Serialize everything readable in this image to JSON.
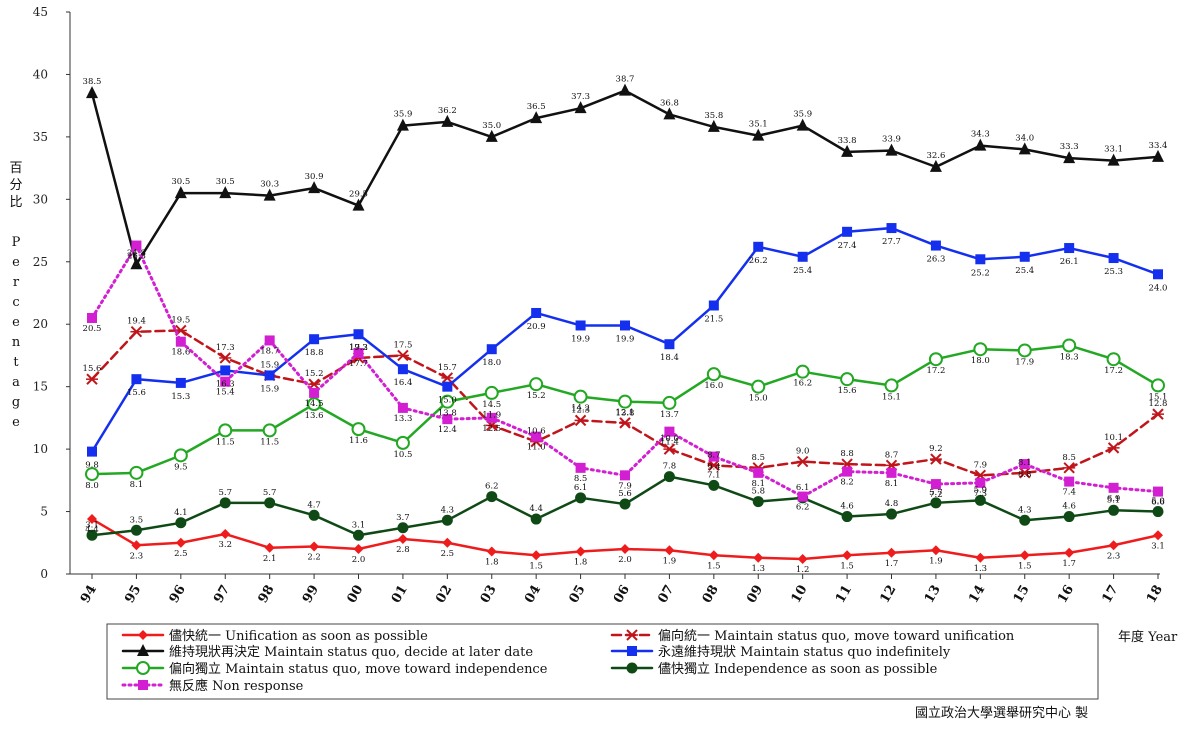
{
  "chart_data": {
    "type": "line",
    "ylabel_zh": "百分比",
    "ylabel_en": "Percentage",
    "xlabel": "年度 Year",
    "credit": "國立政治大學選舉研究中心 製",
    "ylim": [
      0,
      45
    ],
    "yticks": [
      0,
      5,
      10,
      15,
      20,
      25,
      30,
      35,
      40,
      45
    ],
    "categories": [
      "94",
      "95",
      "96",
      "97",
      "98",
      "99",
      "00",
      "01",
      "02",
      "03",
      "04",
      "05",
      "06",
      "07",
      "08",
      "09",
      "10",
      "11",
      "12",
      "13",
      "14",
      "15",
      "16",
      "17",
      "18"
    ],
    "series": [
      {
        "name": "儘快統一 Unification as soon as possible",
        "color": "#ee1c1c",
        "marker": "diamond",
        "dash": "solid",
        "values": [
          4.4,
          2.3,
          2.5,
          3.2,
          2.1,
          2.2,
          2.0,
          2.8,
          2.5,
          1.8,
          1.5,
          1.8,
          2.0,
          1.9,
          1.5,
          1.3,
          1.2,
          1.5,
          1.7,
          1.9,
          1.3,
          1.5,
          1.7,
          2.3,
          3.1
        ]
      },
      {
        "name": "偏向統一 Maintain status quo, move toward unification",
        "color": "#c0151b",
        "marker": "star",
        "dash": "dash",
        "values": [
          15.6,
          19.4,
          19.5,
          17.3,
          15.9,
          15.2,
          17.3,
          17.5,
          15.7,
          11.9,
          10.6,
          12.3,
          12.1,
          10.0,
          8.7,
          8.5,
          9.0,
          8.8,
          8.7,
          9.2,
          7.9,
          8.1,
          8.5,
          10.1,
          12.8
        ]
      },
      {
        "name": "維持現狀再決定 Maintain status quo, decide at later date",
        "color": "#111111",
        "marker": "triangle",
        "dash": "solid",
        "values": [
          38.5,
          24.8,
          30.5,
          30.5,
          30.3,
          30.9,
          29.5,
          35.9,
          36.2,
          35.0,
          36.5,
          37.3,
          38.7,
          36.8,
          35.8,
          35.1,
          35.9,
          33.8,
          33.9,
          32.6,
          34.3,
          34.0,
          33.3,
          33.1,
          33.4
        ]
      },
      {
        "name": "永遠維持現狀 Maintain status quo indefinitely",
        "color": "#1430ee",
        "marker": "square",
        "dash": "solid",
        "values": [
          9.8,
          15.6,
          15.3,
          16.3,
          15.9,
          18.8,
          19.2,
          16.4,
          15.0,
          18.0,
          20.9,
          19.9,
          19.9,
          18.4,
          21.5,
          26.2,
          25.4,
          27.4,
          27.7,
          26.3,
          25.2,
          25.4,
          26.1,
          25.3,
          24.0
        ]
      },
      {
        "name": "偏向獨立 Maintain status quo, move toward independence",
        "color": "#22a822",
        "marker": "circle",
        "dash": "solid",
        "values": [
          8.0,
          8.1,
          9.5,
          11.5,
          11.5,
          13.6,
          11.6,
          10.5,
          13.8,
          14.5,
          15.2,
          14.2,
          13.8,
          13.7,
          16.0,
          15.0,
          16.2,
          15.6,
          15.1,
          17.2,
          18.0,
          17.9,
          18.3,
          17.2,
          15.1
        ]
      },
      {
        "name": "儘快獨立 Independence as soon as possible",
        "color": "#0f4a16",
        "marker": "dot",
        "dash": "solid",
        "values": [
          3.1,
          3.5,
          4.1,
          5.7,
          5.7,
          4.7,
          3.1,
          3.7,
          4.3,
          6.2,
          4.4,
          6.1,
          5.6,
          7.8,
          7.1,
          5.8,
          6.1,
          4.6,
          4.8,
          5.7,
          5.9,
          4.3,
          4.6,
          5.1,
          5.0
        ]
      },
      {
        "name": "無反應 Non response",
        "color": "#d21fd2",
        "marker": "square",
        "dash": "dot",
        "values": [
          20.5,
          26.3,
          18.6,
          15.4,
          18.7,
          14.5,
          17.7,
          13.3,
          12.4,
          12.5,
          11.0,
          8.5,
          7.9,
          11.4,
          9.4,
          8.1,
          6.2,
          8.2,
          8.1,
          7.2,
          7.3,
          8.8,
          7.4,
          6.9,
          6.6
        ]
      }
    ]
  }
}
